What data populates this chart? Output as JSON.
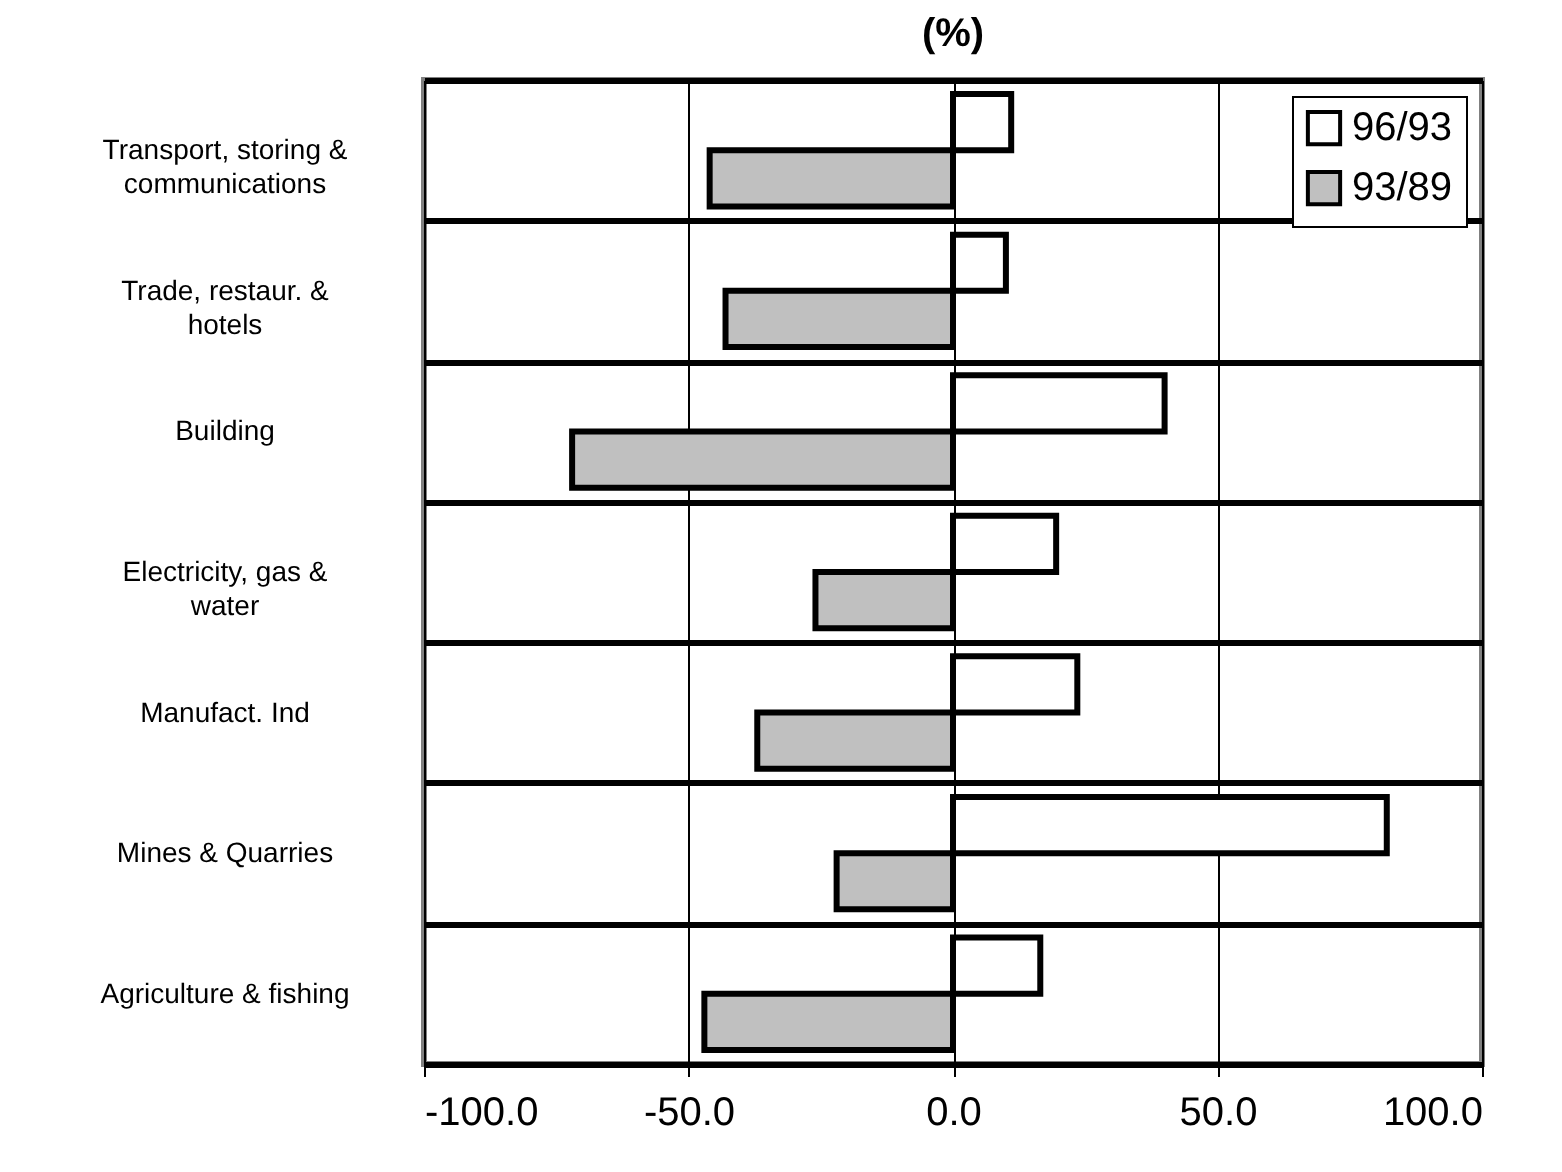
{
  "chart_data": {
    "type": "bar",
    "orientation": "horizontal",
    "title": "(%)",
    "categories": [
      "Transport, storing & communications",
      "Trade, restaur. & hotels",
      "Building",
      "Electricity, gas & water",
      "Manufact. Ind",
      "Mines & Quarries",
      "Agriculture & fishing"
    ],
    "series": [
      {
        "name": "96/93",
        "color": "#ffffff",
        "values": [
          11,
          10,
          40,
          19.5,
          23.5,
          82,
          16.5
        ]
      },
      {
        "name": "93/89",
        "color": "#c0c0c0",
        "values": [
          -46,
          -43,
          -72,
          -26,
          -37,
          -22,
          -47
        ]
      }
    ],
    "xlim": [
      -100,
      100
    ],
    "xticks": [
      {
        "value": -100,
        "label": "-100.0"
      },
      {
        "value": -50,
        "label": "-50.0"
      },
      {
        "value": 0,
        "label": "0.0"
      },
      {
        "value": 50,
        "label": "50.0"
      },
      {
        "value": 100,
        "label": "100.0"
      }
    ],
    "grid": true,
    "legend": "top right"
  }
}
